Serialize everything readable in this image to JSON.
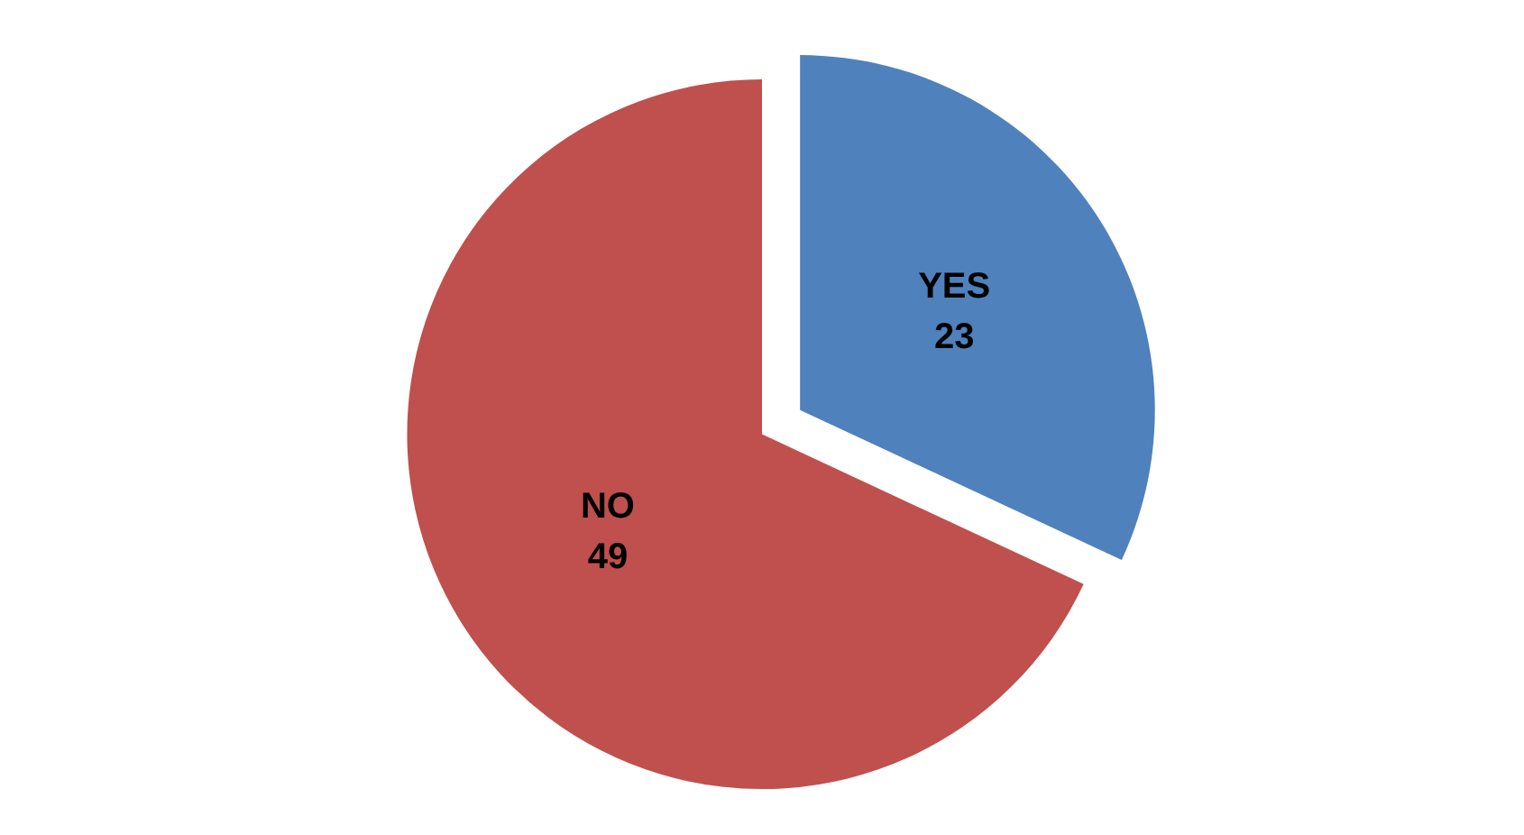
{
  "chart_data": {
    "type": "pie",
    "categories": [
      "YES",
      "NO"
    ],
    "values": [
      23,
      49
    ],
    "colors": [
      "#4f81bd",
      "#c0504d"
    ],
    "data_labels": true
  }
}
